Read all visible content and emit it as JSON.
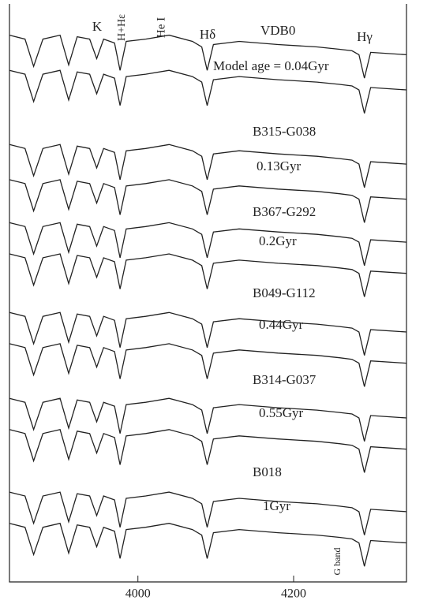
{
  "chart_data": {
    "type": "line",
    "x": [
      3835,
      3855,
      3866,
      3878,
      3900,
      3911,
      3922,
      3938,
      3947,
      3956,
      3970,
      3977,
      3985,
      4010,
      4040,
      4070,
      4082,
      4089,
      4097,
      4130,
      4180,
      4230,
      4259,
      4275,
      4284,
      4291,
      4299,
      4345
    ],
    "xlim": [
      3835,
      4345
    ],
    "xticks": [
      4000,
      4200
    ],
    "ylim": [
      0,
      740
    ],
    "annotations": [
      "K",
      "H+Hε",
      "He I",
      "Hδ",
      "Hγ",
      "G band"
    ],
    "series": [
      {
        "name": "VDB0",
        "color": "#222222",
        "values": [
          700,
          695,
          660,
          695,
          700,
          662,
          698,
          695,
          670,
          695,
          690,
          655,
          692,
          695,
          700,
          692,
          685,
          655,
          688,
          692,
          688,
          685,
          682,
          680,
          675,
          645,
          678,
          675
        ]
      },
      {
        "name": "Model age = 0.04Gyr",
        "color": "#222222",
        "values": [
          655,
          650,
          615,
          650,
          655,
          617,
          653,
          650,
          625,
          650,
          645,
          610,
          647,
          650,
          655,
          647,
          640,
          610,
          643,
          647,
          643,
          640,
          637,
          635,
          630,
          600,
          633,
          630
        ]
      },
      {
        "name": "B315-G038",
        "color": "#222222",
        "values": [
          560,
          555,
          520,
          555,
          560,
          522,
          558,
          555,
          530,
          555,
          550,
          515,
          552,
          555,
          560,
          552,
          545,
          515,
          548,
          552,
          548,
          545,
          542,
          540,
          535,
          505,
          538,
          535
        ]
      },
      {
        "name": "0.13Gyr",
        "color": "#222222",
        "values": [
          515,
          510,
          475,
          510,
          515,
          477,
          513,
          510,
          485,
          510,
          505,
          470,
          507,
          510,
          515,
          507,
          500,
          470,
          503,
          507,
          503,
          500,
          497,
          495,
          490,
          460,
          493,
          490
        ]
      },
      {
        "name": "B367-G292",
        "color": "#222222",
        "values": [
          460,
          455,
          420,
          455,
          460,
          422,
          458,
          455,
          430,
          455,
          450,
          415,
          452,
          455,
          460,
          452,
          445,
          415,
          448,
          452,
          448,
          445,
          442,
          440,
          435,
          405,
          438,
          435
        ]
      },
      {
        "name": "0.2Gyr",
        "color": "#222222",
        "values": [
          420,
          415,
          380,
          415,
          420,
          382,
          418,
          415,
          390,
          415,
          410,
          375,
          412,
          415,
          420,
          412,
          405,
          375,
          408,
          412,
          408,
          405,
          402,
          400,
          395,
          365,
          398,
          395
        ]
      },
      {
        "name": "B049-G112",
        "color": "#222222",
        "values": [
          345,
          340,
          305,
          340,
          345,
          307,
          343,
          340,
          315,
          340,
          335,
          300,
          337,
          340,
          345,
          337,
          330,
          300,
          333,
          337,
          333,
          330,
          327,
          325,
          320,
          290,
          323,
          320
        ]
      },
      {
        "name": "0.44Gyr",
        "color": "#222222",
        "values": [
          305,
          300,
          265,
          300,
          305,
          267,
          303,
          300,
          275,
          300,
          295,
          260,
          297,
          300,
          305,
          297,
          290,
          260,
          293,
          297,
          293,
          290,
          287,
          285,
          280,
          250,
          283,
          280
        ]
      },
      {
        "name": "B314-G037",
        "color": "#222222",
        "values": [
          235,
          230,
          195,
          230,
          235,
          197,
          233,
          230,
          205,
          230,
          225,
          190,
          227,
          230,
          235,
          227,
          220,
          190,
          223,
          227,
          223,
          220,
          217,
          215,
          210,
          180,
          213,
          210
        ]
      },
      {
        "name": "0.55Gyr",
        "color": "#222222",
        "values": [
          195,
          190,
          155,
          190,
          195,
          157,
          193,
          190,
          165,
          190,
          185,
          150,
          187,
          190,
          195,
          187,
          180,
          150,
          183,
          187,
          183,
          180,
          177,
          175,
          170,
          140,
          173,
          170
        ]
      },
      {
        "name": "B018",
        "color": "#222222",
        "values": [
          115,
          110,
          75,
          110,
          115,
          77,
          113,
          110,
          85,
          110,
          105,
          70,
          107,
          110,
          115,
          107,
          100,
          70,
          103,
          107,
          103,
          100,
          97,
          95,
          90,
          60,
          93,
          90
        ]
      },
      {
        "name": "1Gyr",
        "color": "#222222",
        "values": [
          75,
          70,
          35,
          70,
          75,
          37,
          73,
          70,
          45,
          70,
          65,
          30,
          67,
          70,
          75,
          67,
          60,
          30,
          63,
          67,
          63,
          60,
          57,
          55,
          50,
          20,
          53,
          50
        ]
      }
    ]
  }
}
